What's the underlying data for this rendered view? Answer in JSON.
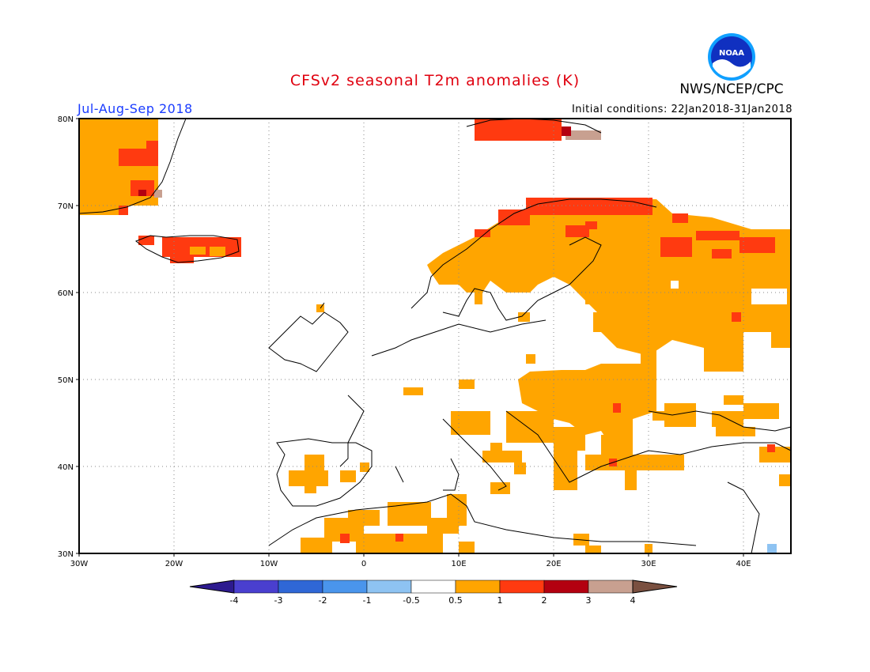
{
  "title": "CFSv2 seasonal T2m anomalies (K)",
  "period": "Jul-Aug-Sep 2018",
  "initial_conditions": "Initial conditions: 22Jan2018-31Jan2018",
  "agency": "NWS/NCEP/CPC",
  "logo_text": "NOAA",
  "lat_labels": [
    "80N",
    "70N",
    "60N",
    "50N",
    "40N",
    "30N"
  ],
  "lon_labels": [
    "30W",
    "20W",
    "10W",
    "0",
    "10E",
    "20E",
    "30E",
    "40E"
  ],
  "colorbar": {
    "labels": [
      "-4",
      "-3",
      "-2",
      "-1",
      "-0.5",
      "0.5",
      "1",
      "2",
      "3",
      "4"
    ],
    "colors": [
      "#2d1a8f",
      "#4a3fcf",
      "#2f67d6",
      "#4a95ec",
      "#8ec3f2",
      "#ffffff",
      "#ffa500",
      "#ff3a10",
      "#b30010",
      "#c8a090",
      "#7a5040"
    ]
  },
  "colors": {
    "orange": "#ffa500",
    "red": "#ff3a10",
    "darkred": "#b30010",
    "tan": "#c8a090",
    "lightblue": "#8ec3f2"
  }
}
